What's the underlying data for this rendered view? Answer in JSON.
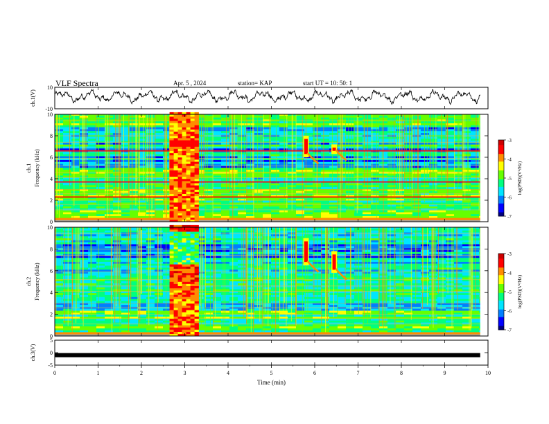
{
  "header": {
    "title": "VLF Spectra",
    "date": "Apr. 5 , 2024",
    "station": "station= KAP",
    "start": "start UT = 10: 50: 1"
  },
  "chart_data": [
    {
      "type": "line",
      "panel": "ch1-waveform",
      "ylabel": "ch.1(V)",
      "ylim": [
        -10,
        10
      ],
      "yticks": [
        "10",
        "-10"
      ]
    },
    {
      "type": "heatmap",
      "panel": "ch1-spectrogram",
      "ylabel": "ch.1 Frequency (kHz)",
      "ylim": [
        0,
        10
      ],
      "yticks": [
        "0",
        "2",
        "4",
        "6",
        "8",
        "10"
      ],
      "colorbar": {
        "label": "log(PSD)(V²/Hz)",
        "range": [
          -7,
          -3
        ],
        "ticks": [
          "-3",
          "-4",
          "-5",
          "-6",
          "-7"
        ]
      },
      "features": [
        {
          "kind": "broadband-burst",
          "x": [
            2.65,
            3.25
          ],
          "y": [
            0,
            10
          ]
        },
        {
          "kind": "narrowband-line",
          "y": 6.6
        },
        {
          "kind": "narrowband-line",
          "y": 2.3
        },
        {
          "kind": "narrowband-line",
          "y": 3.7
        },
        {
          "kind": "emission-spike",
          "x": 5.8,
          "y": [
            6.0,
            8.0
          ]
        },
        {
          "kind": "emission-spike",
          "x": 6.45,
          "y": [
            6.3,
            7.2
          ]
        }
      ]
    },
    {
      "type": "heatmap",
      "panel": "ch2-spectrogram",
      "ylabel": "ch.2 Frequency (kHz)",
      "ylim": [
        0,
        10
      ],
      "yticks": [
        "0",
        "2",
        "4",
        "6",
        "8",
        "10"
      ],
      "colorbar": {
        "label": "log(PSD)(V²/Hz)",
        "range": [
          -7,
          -3
        ],
        "ticks": [
          "-3",
          "-4",
          "-5",
          "-6",
          "-7"
        ]
      },
      "features": [
        {
          "kind": "broadband-burst",
          "x": [
            2.65,
            3.25
          ],
          "y": [
            0,
            10
          ]
        },
        {
          "kind": "emission-spike",
          "x": 5.8,
          "y": [
            6.5,
            9.0
          ]
        },
        {
          "kind": "emission-spike",
          "x": 6.45,
          "y": [
            5.8,
            7.8
          ]
        }
      ]
    },
    {
      "type": "line",
      "panel": "ch3-waveform",
      "ylabel": "ch.3(V)",
      "ylim": [
        -5,
        5
      ],
      "yticks": [
        "5",
        "0",
        "-5"
      ],
      "level": -1
    }
  ],
  "xaxis": {
    "label": "Time (min)",
    "range": [
      0,
      10
    ],
    "data_end": 9.82,
    "ticks": [
      "0",
      "1",
      "2",
      "3",
      "4",
      "5",
      "6",
      "7",
      "8",
      "9",
      "10"
    ]
  },
  "colors": {
    "palette": [
      "#00007f",
      "#0000ff",
      "#007fff",
      "#00e5ff",
      "#00ff7f",
      "#66ff00",
      "#ffff00",
      "#ff8c00",
      "#ff0000",
      "#cc0000"
    ]
  }
}
